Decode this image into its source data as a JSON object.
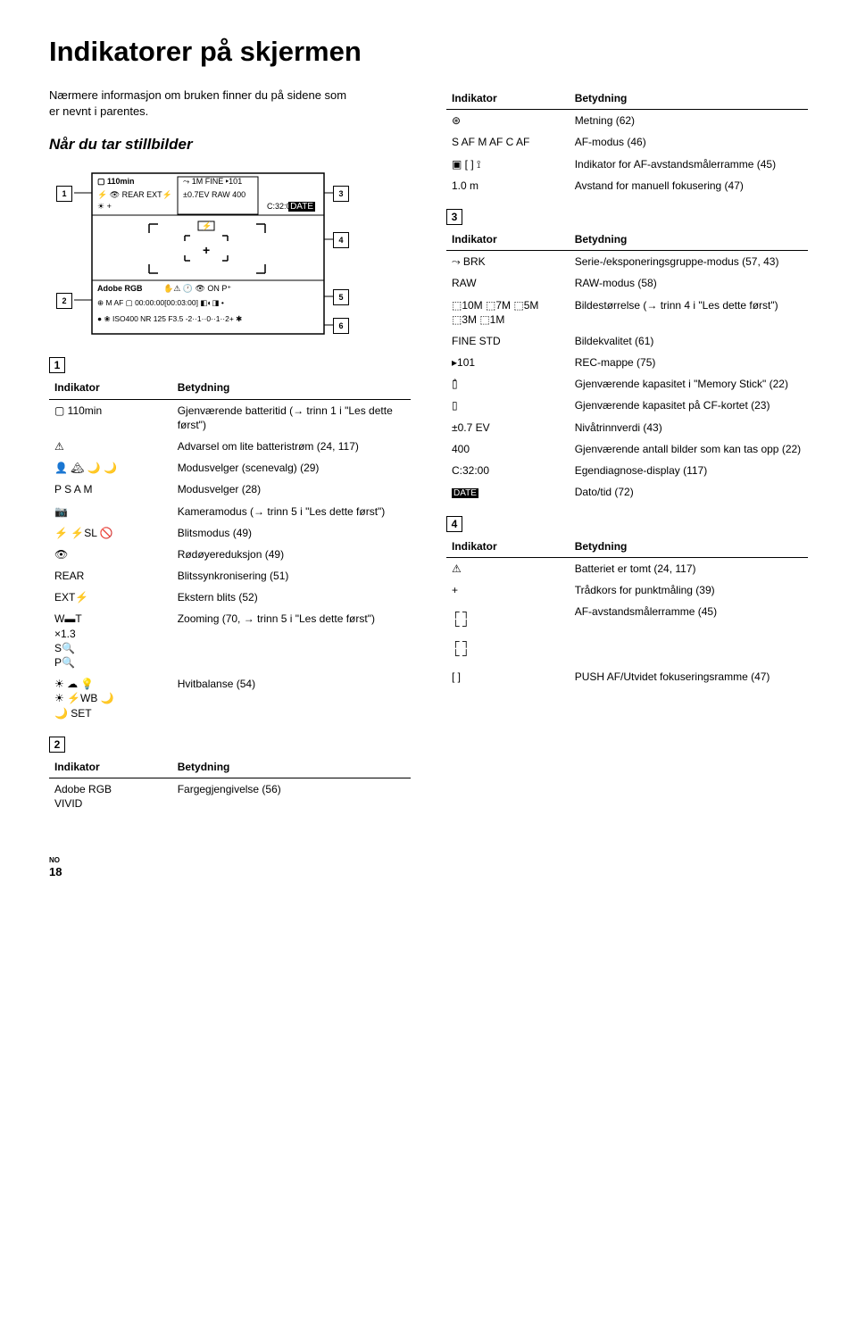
{
  "title": "Indikatorer på skjermen",
  "intro": "Nærmere informasjon om bruken finner du på sidene som er nevnt i parentes.",
  "subhead": "Når du tar stillbilder",
  "footer_no": "NO",
  "footer_page": "18",
  "diagram": {
    "top1": "110min",
    "top2": "⤳ 1M FINE ▸101",
    "row2a": "⚡ 👁 REAR EXT⚡",
    "row2b": "±0.7EV RAW   400",
    "row3": "C:32:00",
    "mid_plus": "+",
    "lrow1": "Adobe RGB",
    "lrow2": "✋⚠ 🕐 👁 ON         P⁺",
    "lrow3": "⊕ M AF ▢  00:00:00[00:03:00] ◧◐◨   •",
    "lrow4": "● ❀ ISO400 NR 125 F3.5 -2··1··0··1··2+ ✱",
    "date_tag": "DATE"
  },
  "section1": {
    "num": "1",
    "header_indicator": "Indikator",
    "header_meaning": "Betydning",
    "rows": [
      {
        "ind": "▢ 110min",
        "mean": "Gjenværende batteritid (→ trinn 1 i \"Les dette først\")"
      },
      {
        "ind": "⚠",
        "mean": "Advarsel om lite batteristrøm (24, 117)"
      },
      {
        "ind": "👤 🏔 🌙 🌙",
        "mean": "Modusvelger (scenevalg) (29)"
      },
      {
        "ind": "P S A M",
        "mean": "Modusvelger (28)"
      },
      {
        "ind": "📷",
        "mean": "Kameramodus (→ trinn 5 i \"Les dette først\")"
      },
      {
        "ind": "⚡  ⚡SL  🚫",
        "mean": "Blitsmodus (49)"
      },
      {
        "ind": "👁",
        "mean": "Rødøyereduksjon (49)"
      },
      {
        "ind": "REAR",
        "mean": "Blitssynkronisering (51)"
      },
      {
        "ind": "EXT⚡",
        "mean": "Ekstern blits (52)"
      },
      {
        "ind": "W▬T\n×1.3\nS🔍\nP🔍",
        "mean": "Zooming (70, → trinn 5 i \"Les dette først\")"
      },
      {
        "ind": "☀ ☁ 💡\n☀ ⚡WB 🌙\n🌙 SET",
        "mean": "Hvitbalanse (54)"
      }
    ]
  },
  "section2": {
    "num": "2",
    "header_indicator": "Indikator",
    "header_meaning": "Betydning",
    "rows": [
      {
        "ind": "Adobe RGB\nVIVID",
        "mean": "Fargegjengivelse (56)"
      }
    ]
  },
  "sectionTopRight": {
    "header_indicator": "Indikator",
    "header_meaning": "Betydning",
    "rows": [
      {
        "ind": "⊛",
        "mean": "Metning (62)"
      },
      {
        "ind": "S AF  M AF  C AF",
        "mean": "AF-modus (46)"
      },
      {
        "ind": "▣  [ ]  ⟟",
        "mean": "Indikator for AF-avstandsmålerramme (45)"
      },
      {
        "ind": "1.0 m",
        "mean": "Avstand for manuell fokusering (47)"
      }
    ]
  },
  "section3": {
    "num": "3",
    "header_indicator": "Indikator",
    "header_meaning": "Betydning",
    "rows": [
      {
        "ind": "⤳ BRK",
        "mean": "Serie-/eksponeringsgruppe-modus (57, 43)"
      },
      {
        "ind": "RAW",
        "mean": "RAW-modus (58)"
      },
      {
        "ind": "⬚10M ⬚7M ⬚5M\n⬚3M ⬚1M",
        "mean": "Bildestørrelse (→ trinn 4 i \"Les dette først\")"
      },
      {
        "ind": "FINE STD",
        "mean": "Bildekvalitet (61)"
      },
      {
        "ind": "▸101",
        "mean": "REC-mappe (75)"
      },
      {
        "ind": "▯̂",
        "mean": "Gjenværende kapasitet i \"Memory Stick\" (22)"
      },
      {
        "ind": "▯",
        "mean": "Gjenværende kapasitet på CF-kortet (23)"
      },
      {
        "ind": "±0.7 EV",
        "mean": "Nivåtrinnverdi (43)"
      },
      {
        "ind": "400",
        "mean": "Gjenværende antall bilder som kan tas opp (22)"
      },
      {
        "ind": "C:32:00",
        "mean": "Egendiagnose-display (117)"
      },
      {
        "ind": "DATE",
        "mean": "Dato/tid (72)"
      }
    ]
  },
  "section4": {
    "num": "4",
    "header_indicator": "Indikator",
    "header_meaning": "Betydning",
    "rows": [
      {
        "ind": "⚠",
        "mean": "Batteriet er tomt (24, 117)"
      },
      {
        "ind": "+",
        "mean": "Trådkors for punktmåling (39)"
      },
      {
        "ind": "┌   ┐\n└   ┘\n┌ ┐\n└ ┘",
        "mean": "AF-avstandsmålerramme (45)"
      },
      {
        "ind": "[ ]",
        "mean": "PUSH AF/Utvidet fokuseringsramme (47)"
      }
    ]
  }
}
